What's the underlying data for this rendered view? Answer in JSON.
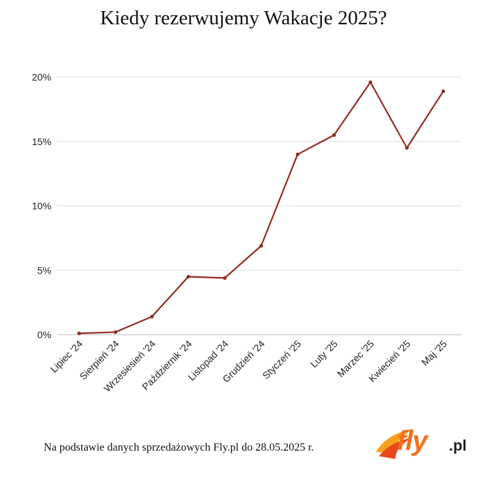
{
  "chart_data": {
    "type": "line",
    "title": "Kiedy rezerwujemy Wakacje 2025?",
    "xlabel": "",
    "ylabel": "",
    "categories": [
      "Lipiec '24",
      "Sierpień '24",
      "Wrzesiesień '24",
      "Październik '24",
      "Listopad '24",
      "Grudzień '24",
      "Styczeń '25",
      "Luty '25",
      "Marzec '25",
      "Kwiecień '25",
      "Maj '25"
    ],
    "series": [
      {
        "name": "",
        "values": [
          0.1,
          0.2,
          1.4,
          4.5,
          4.4,
          6.9,
          14.0,
          15.5,
          19.6,
          14.5,
          18.9
        ]
      }
    ],
    "ylim": [
      0,
      20
    ],
    "yticks": [
      "0%",
      "5%",
      "10%",
      "15%",
      "20%"
    ],
    "grid": true,
    "line_color": "#922b21"
  },
  "footer": {
    "source_note": "Na podstawie danych sprzedażowych Fly.pl do 28.05.2025 r."
  },
  "logo": {
    "text": "fly",
    "suffix": ".pl",
    "color": "#f3701e"
  }
}
